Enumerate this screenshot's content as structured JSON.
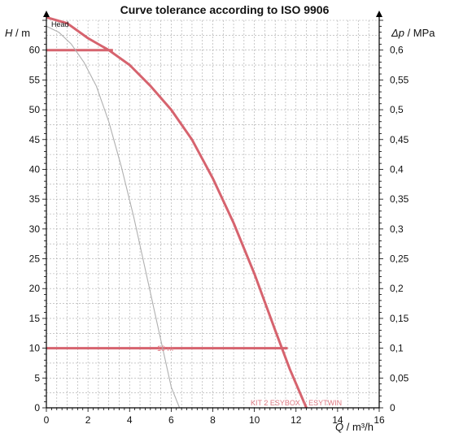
{
  "chart_data": {
    "type": "line",
    "title": "Curve tolerance according to ISO 9906",
    "head_label": "Head",
    "left_axis_label": {
      "sym": "H",
      "unit": " / m"
    },
    "right_axis_label": {
      "sym": "Δp",
      "unit": " / MPa"
    },
    "x_axis_label": {
      "sym": "Q",
      "unit": " / m³/h"
    },
    "xlim": [
      0,
      16
    ],
    "ylim": [
      0,
      65
    ],
    "x_ticks": [
      "0",
      "2",
      "4",
      "6",
      "8",
      "10",
      "12",
      "14",
      "16"
    ],
    "y_ticks": [
      "0",
      "5",
      "10",
      "15",
      "20",
      "25",
      "30",
      "35",
      "40",
      "45",
      "50",
      "55",
      "60"
    ],
    "right_ticks": [
      "0",
      "0,05",
      "0,1",
      "0,15",
      "0,2",
      "0,25",
      "0,3",
      "0,35",
      "0,4",
      "0,45",
      "0,5",
      "0,55",
      "0,6"
    ],
    "grid": true,
    "series": [
      {
        "name": "KIT 2 ESYBOX + ESYTWIN",
        "color": "#d6636e",
        "x": [
          0,
          1,
          2,
          3,
          4,
          5,
          6,
          7,
          8,
          9,
          10,
          11,
          11.7,
          12.5
        ],
        "y": [
          65.5,
          64.5,
          62,
          60,
          57.5,
          54,
          50,
          45,
          38.5,
          31,
          22.5,
          13,
          6.5,
          0
        ]
      },
      {
        "name": "",
        "color": "#b0b0b0",
        "x": [
          0,
          0.6,
          1.2,
          1.8,
          2.4,
          3,
          3.6,
          4.2,
          4.8,
          5.4,
          6,
          6.4
        ],
        "y": [
          64,
          63,
          61,
          58,
          54,
          48,
          40.5,
          32,
          22.5,
          13,
          3.5,
          0
        ]
      }
    ],
    "markers": [
      {
        "label": "",
        "y": 60,
        "x_end": 3.2
      },
      {
        "label": "10 m",
        "y": 10,
        "x_end": 11.6
      }
    ],
    "series_label": "KIT 2 ESYBOX + ESYTWIN"
  }
}
